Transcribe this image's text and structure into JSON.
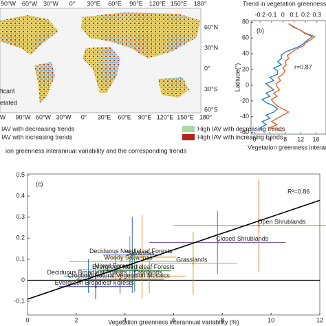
{
  "map": {
    "top_lon_labels": [
      "90°W",
      "60°W",
      "30°W",
      "0°",
      "30°E",
      "60°E",
      "90°E",
      "120°E",
      "150°E",
      "180°"
    ],
    "bottom_lon_labels": [
      "W",
      "90°W",
      "60°W",
      "30°W",
      "0°",
      "30°E",
      "60°E",
      "90°E",
      "120°E",
      "150°E",
      "180°"
    ],
    "lat_labels": [
      "60°N",
      "30°N",
      "0°",
      "30°S",
      "60°S"
    ],
    "legend_left": [
      "ficant",
      "etated"
    ],
    "legend": [
      {
        "label": "IAV with decreasing trends"
      },
      {
        "label": "High IAV with decreasing trends",
        "color": "#a9d9a3"
      },
      {
        "label": "IAV with increasing trends"
      },
      {
        "label": "High IAV with increasing trends",
        "color": "#b3201e"
      }
    ],
    "caption": "ion greenness interannual variability and the corresponding trends"
  },
  "chart_data": [
    {
      "type": "profile",
      "panel_label": "(b)",
      "annotation": "r=0.87",
      "ylabel": "Latitude(°)",
      "xlabel": "Vegetation greenness interannual va",
      "x2label": "Trend in vegetation greenness interann",
      "ylim": [
        -62,
        82
      ],
      "yticks": [
        80,
        60,
        40,
        20,
        0,
        -20,
        -40,
        -60
      ],
      "xlim": [
        -0.9,
        18.6
      ],
      "xticks": [
        0,
        4,
        8,
        12,
        16
      ],
      "x2lim": [
        -0.28,
        0.38
      ],
      "x2ticks": [
        -0.2,
        -0.1,
        0,
        0.1,
        0.2,
        0.3
      ],
      "y": [
        -58,
        -54,
        -50,
        -46,
        -42,
        -38,
        -34,
        -30,
        -26,
        -22,
        -18,
        -14,
        -10,
        -6,
        -2,
        2,
        6,
        10,
        14,
        18,
        22,
        26,
        30,
        34,
        38,
        42,
        46,
        50,
        54,
        58,
        62,
        66,
        70,
        74,
        78
      ],
      "series": [
        {
          "color": "#2a7fc8",
          "values": [
            2,
            1.5,
            3,
            2,
            4,
            3,
            5,
            6,
            5,
            3,
            2,
            4,
            3,
            5,
            4,
            3,
            5,
            4,
            6,
            6,
            5,
            7,
            6,
            7,
            7,
            8,
            10,
            12,
            13,
            14,
            15,
            13,
            12,
            10,
            9
          ]
        },
        {
          "color": "#e8622a",
          "axis": "x2",
          "values": [
            0,
            -0.12,
            -0.05,
            -0.1,
            -0.05,
            0,
            0.05,
            0,
            -0.05,
            -0.08,
            -0.1,
            -0.05,
            -0.08,
            -0.03,
            -0.05,
            -0.06,
            -0.02,
            -0.04,
            0,
            0.02,
            0,
            0.03,
            0.02,
            0.05,
            0.04,
            0.08,
            0.12,
            0.18,
            0.2,
            0.25,
            0.28,
            0.2,
            0.15,
            0.1,
            0.05
          ]
        }
      ]
    },
    {
      "type": "scatter",
      "panel_label": "(c)",
      "annotation": "R²=0.86",
      "xlabel": "Vegetation greenness interannual variability (%)",
      "xlim": [
        0,
        12
      ],
      "xticks": [
        0,
        2,
        4,
        6,
        8,
        10,
        12
      ],
      "ylim": [
        -0.165,
        0.505
      ],
      "yticks": [
        -0.1,
        0,
        0.1,
        0.2,
        0.3,
        0.4,
        0.5
      ],
      "trend_line": {
        "x": [
          0,
          12
        ],
        "y": [
          -0.09,
          0.38
        ]
      },
      "points": [
        {
          "name": "Open Shrublands",
          "color": "#e8622a",
          "x": 9.5,
          "y": 0.26,
          "xerr": 3.5,
          "yerr": 0.22
        },
        {
          "name": "Closed Shrublands",
          "color": "#7b5cc4",
          "x": 7.8,
          "y": 0.18,
          "xerr": 2.8,
          "yerr": 0.15
        },
        {
          "name": "Deciduous Needleleaf Forests",
          "color": "#3a5fcd",
          "x": 4.3,
          "y": 0.12,
          "xerr": 1.2,
          "yerr": 0.18
        },
        {
          "name": "Woody Savannas",
          "color": "#66bb44",
          "x": 4.2,
          "y": 0.09,
          "xerr": 2.5,
          "yerr": 0.12
        },
        {
          "name": "Savannas",
          "color": "#e08a00",
          "x": 4.7,
          "y": 0.11,
          "xerr": 1.4,
          "yerr": 0.2
        },
        {
          "name": "Grasslands",
          "color": "#d9a400",
          "x": 6.8,
          "y": 0.08,
          "xerr": 1.8,
          "yerr": 0.15
        },
        {
          "name": "Evergreen Needleleaf Forests",
          "color": "#2e7d32",
          "x": 4.4,
          "y": 0.045,
          "xerr": 1.5,
          "yerr": 0.1
        },
        {
          "name": "Mixed Forests",
          "color": "#3399cc",
          "x": 3.6,
          "y": 0.05,
          "xerr": 1.5,
          "yerr": 0.08
        },
        {
          "name": "Croplands",
          "color": "#c99a10",
          "x": 5.0,
          "y": 0.02,
          "xerr": 1.5,
          "yerr": 0.08
        },
        {
          "name": "Deciduous Broadleaf Forests",
          "color": "#2a7ab0",
          "x": 2.5,
          "y": 0.02,
          "xerr": 1.0,
          "yerr": 0.08
        },
        {
          "name": "Cropland/Natural Vegetation Mosaics",
          "color": "#8b4513",
          "x": 3.8,
          "y": 0.005,
          "xerr": 1.8,
          "yerr": 0.07
        },
        {
          "name": "Evergreen Broadleaf Forests",
          "color": "#3030a0",
          "x": 2.8,
          "y": -0.03,
          "xerr": 1.5,
          "yerr": 0.06
        }
      ]
    }
  ]
}
